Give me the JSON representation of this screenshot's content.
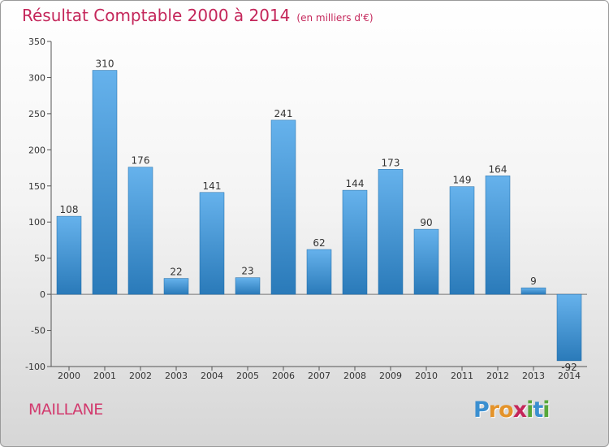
{
  "title": "Résultat Comptable 2000 à 2014",
  "unit": "(en milliers d'€)",
  "commune": "MAILLANE",
  "logo": {
    "letters": [
      "P",
      "r",
      "o",
      "x",
      "i",
      "t",
      "i"
    ],
    "colors": [
      "#3a8fd0",
      "#e4932a",
      "#e4932a",
      "#c4265a",
      "#57a83a",
      "#3a8fd0",
      "#57a83a"
    ]
  },
  "colors": {
    "bar_top": "#66b2ec",
    "bar_bottom": "#2a7ab9",
    "title": "#c4265a"
  },
  "chart_data": {
    "type": "bar",
    "title": "Résultat Comptable 2000 à 2014",
    "ylabel": "en milliers d'€",
    "categories": [
      "2000",
      "2001",
      "2002",
      "2003",
      "2004",
      "2005",
      "2006",
      "2007",
      "2008",
      "2009",
      "2010",
      "2011",
      "2012",
      "2013",
      "2014"
    ],
    "values": [
      108,
      310,
      176,
      22,
      141,
      23,
      241,
      62,
      144,
      173,
      90,
      149,
      164,
      9,
      -92
    ],
    "ylim": [
      -100,
      350
    ],
    "yticks": [
      -100,
      -50,
      0,
      50,
      100,
      150,
      200,
      250,
      300,
      350
    ],
    "grid": false
  }
}
